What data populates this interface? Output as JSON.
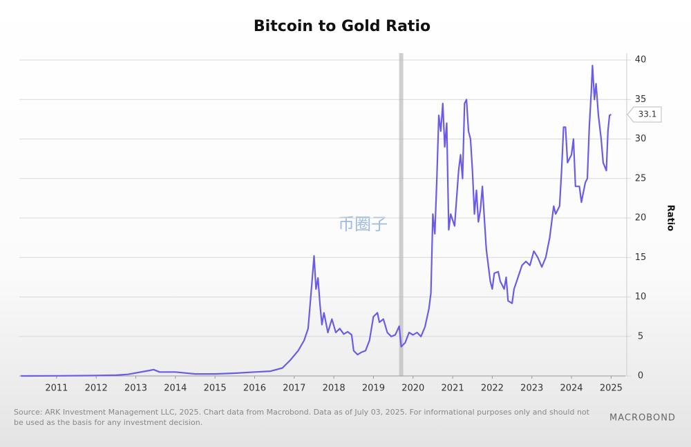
{
  "chart_data": {
    "type": "line",
    "title": "Bitcoin to Gold Ratio",
    "y_label": "Ratio",
    "source": "Source: ARK Investment Management LLC, 2025. Chart data from Macrobond. Data as of July 03, 2025. For informational purposes only and should not be used as the basis for any investment decision.",
    "logo": "MACROBOND",
    "watermark": "币圈子",
    "x": [
      2010.6,
      2011.5,
      2012.5,
      2013.0,
      2013.3,
      2013.85,
      2013.95,
      2014.1,
      2014.5,
      2015.0,
      2015.5,
      2016.0,
      2016.5,
      2016.9,
      2017.2,
      2017.4,
      2017.6,
      2017.75,
      2017.85,
      2017.95,
      2018.0,
      2018.05,
      2018.1,
      2018.15,
      2018.2,
      2018.25,
      2018.35,
      2018.45,
      2018.55,
      2018.65,
      2018.75,
      2018.85,
      2018.95,
      2019.0,
      2019.1,
      2019.2,
      2019.3,
      2019.4,
      2019.5,
      2019.6,
      2019.65,
      2019.75,
      2019.85,
      2019.95,
      2020.05,
      2020.15,
      2020.2,
      2020.3,
      2020.4,
      2020.5,
      2020.6,
      2020.7,
      2020.8,
      2020.9,
      2020.95,
      2021.0,
      2021.05,
      2021.1,
      2021.15,
      2021.2,
      2021.25,
      2021.3,
      2021.35,
      2021.4,
      2021.45,
      2021.55,
      2021.65,
      2021.7,
      2021.75,
      2021.8,
      2021.85,
      2021.9,
      2021.95,
      2022.0,
      2022.05,
      2022.1,
      2022.15,
      2022.2,
      2022.25,
      2022.3,
      2022.35,
      2022.45,
      2022.5,
      2022.55,
      2022.65,
      2022.7,
      2022.8,
      2022.85,
      2022.9,
      2023.0,
      2023.05,
      2023.15,
      2023.25,
      2023.35,
      2023.45,
      2023.55,
      2023.65,
      2023.75,
      2023.85,
      2023.95,
      2024.05,
      2024.1,
      2024.2,
      2024.25,
      2024.3,
      2024.35,
      2024.4,
      2024.5,
      2024.55,
      2024.6,
      2024.7,
      2024.75,
      2024.85,
      2024.9,
      2024.95,
      2025.0,
      2025.03,
      2025.08,
      2025.12,
      2025.18,
      2025.25,
      2025.3,
      2025.38,
      2025.42,
      2025.46,
      2025.5
    ],
    "series": [
      {
        "name": "Bitcoin to Gold Ratio",
        "color": "#6a5ce6",
        "values": [
          0.0,
          0.02,
          0.05,
          0.1,
          0.2,
          0.7,
          0.8,
          0.5,
          0.5,
          0.25,
          0.25,
          0.35,
          0.5,
          0.6,
          1.0,
          2.0,
          3.2,
          4.5,
          6.0,
          12,
          15.2,
          11,
          12.4,
          9,
          6.5,
          8,
          5.5,
          7.2,
          5.5,
          6,
          5.3,
          5.6,
          5.2,
          3.2,
          2.7,
          3.0,
          3.2,
          4.5,
          7.5,
          8.0,
          6.8,
          7.2,
          5.5,
          5.0,
          5.2,
          6.3,
          3.7,
          4.2,
          5.5,
          5.2,
          5.5,
          5.0,
          6.2,
          8.5,
          10.5,
          20.5,
          18,
          25,
          33,
          31,
          34.5,
          29,
          32,
          18.5,
          20.5,
          19,
          26,
          28,
          25,
          34.5,
          35,
          31,
          30,
          26,
          20.5,
          23.5,
          19.5,
          21,
          24,
          20,
          16,
          12,
          11,
          13,
          13.2,
          12,
          11,
          12.5,
          9.5,
          9.2,
          11.0,
          12.5,
          14.0,
          14.5,
          14.0,
          15.8,
          15.0,
          13.8,
          15.0,
          17.5,
          21.5,
          20.5,
          21.5,
          26,
          31.5,
          31.5,
          27,
          28,
          30,
          24,
          24,
          22,
          24.5,
          25,
          31.5,
          36,
          39.3,
          35,
          37,
          33,
          30,
          27,
          26,
          31,
          33,
          33.1
        ],
        "end_label": 33.1
      }
    ],
    "shade_x": 2020.2,
    "xlim": [
      2010.56,
      2025.86
    ],
    "xticks": [
      {
        "value": 2011.5,
        "label": "2011"
      },
      {
        "value": 2012.5,
        "label": "2012"
      },
      {
        "value": 2013.5,
        "label": "2013"
      },
      {
        "value": 2014.5,
        "label": "2014"
      },
      {
        "value": 2015.5,
        "label": "2015"
      },
      {
        "value": 2016.5,
        "label": "2016"
      },
      {
        "value": 2017.5,
        "label": "2017"
      },
      {
        "value": 2018.5,
        "label": "2018"
      },
      {
        "value": 2019.5,
        "label": "2019"
      },
      {
        "value": 2020.5,
        "label": "2020"
      },
      {
        "value": 2021.5,
        "label": "2021"
      },
      {
        "value": 2022.5,
        "label": "2022"
      },
      {
        "value": 2023.5,
        "label": "2023"
      },
      {
        "value": 2024.5,
        "label": "2024"
      },
      {
        "value": 2025.5,
        "label": "2025"
      }
    ],
    "ylim": [
      0,
      40
    ],
    "yticks": [
      0,
      5,
      10,
      15,
      20,
      25,
      30,
      35,
      40
    ],
    "grid": true
  }
}
